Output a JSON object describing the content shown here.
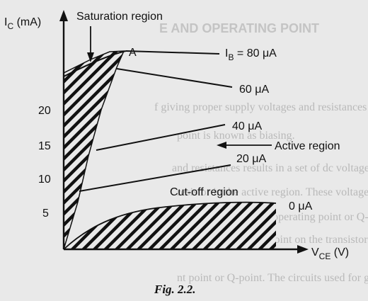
{
  "figure": {
    "axis_y_label_main": "I",
    "axis_y_label_sub": "C",
    "axis_y_label_unit": " (mA)",
    "axis_x_label_main": "V",
    "axis_x_label_sub": "CE",
    "axis_x_label_unit": " (V)",
    "y_ticks": [
      "20",
      "15",
      "10",
      "5"
    ],
    "point_label": "A",
    "regions": {
      "saturation": "Saturation region",
      "active": "Active region",
      "cutoff": "Cut-off region"
    },
    "curves": [
      {
        "prefix": "I",
        "sub": "B",
        "rest": " = 80 μA"
      },
      {
        "prefix": "",
        "sub": "",
        "rest": "60 μA"
      },
      {
        "prefix": "",
        "sub": "",
        "rest": "40 μA"
      },
      {
        "prefix": "",
        "sub": "",
        "rest": "20 μA"
      },
      {
        "prefix": "",
        "sub": "",
        "rest": "0 μA"
      }
    ],
    "caption": "Fig. 2.2."
  },
  "background_text": {
    "heading": "E AND OPERATING POINT",
    "lines": [
      "f giving proper supply voltages and resistances fo",
      "point is known as biasing.",
      "and resistances results in a set of dc voltage V",
      "resistor in the active region. These voltages and cu",
      "and they determine the operating point or Q-point fo",
      "ating point is a fixed point on the transistor charact",
      "nt point or Q-point. The circuits used for getting"
    ]
  },
  "colors": {
    "ink": "#111111",
    "paper": "#e9e9e9",
    "ghost": "#b9b9b9"
  }
}
